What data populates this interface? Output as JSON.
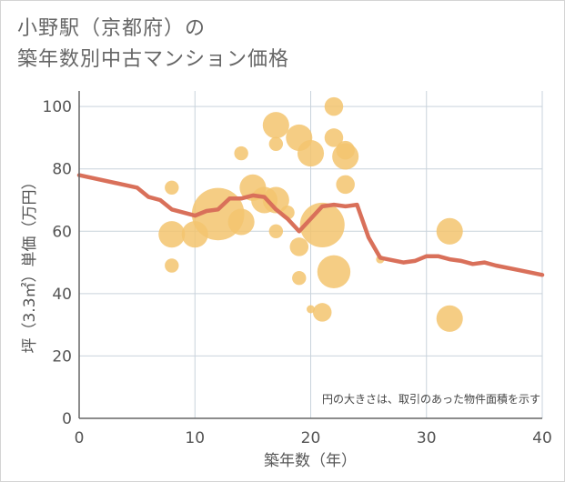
{
  "title": {
    "line1": "小野駅（京都府）の",
    "line2": "築年数別中古マンション価格"
  },
  "colors": {
    "bubble": "#f3c46e",
    "line": "#d9705a",
    "grid": "#c9d3dc",
    "axis": "#666666"
  },
  "chart_data": {
    "type": "scatter",
    "xlabel": "築年数（年）",
    "ylabel": "坪（3.3㎡）単価（万円）",
    "xlim": [
      0,
      40
    ],
    "ylim": [
      0,
      105
    ],
    "x_ticks": [
      "0",
      "10",
      "20",
      "30",
      "40"
    ],
    "y_ticks": [
      "0",
      "20",
      "40",
      "60",
      "80",
      "100"
    ],
    "grid": true,
    "annotation": "円の大きさは、取引のあった物件面積を示す",
    "bubbles": [
      {
        "x": 8,
        "y": 74,
        "size": 2
      },
      {
        "x": 8,
        "y": 59,
        "size": 5
      },
      {
        "x": 8,
        "y": 49,
        "size": 2
      },
      {
        "x": 10,
        "y": 59,
        "size": 5
      },
      {
        "x": 12,
        "y": 65.5,
        "size": 14
      },
      {
        "x": 14,
        "y": 63,
        "size": 5
      },
      {
        "x": 14,
        "y": 85,
        "size": 2
      },
      {
        "x": 15,
        "y": 74,
        "size": 5
      },
      {
        "x": 16,
        "y": 70,
        "size": 5
      },
      {
        "x": 17,
        "y": 94,
        "size": 5
      },
      {
        "x": 17,
        "y": 88,
        "size": 2
      },
      {
        "x": 17,
        "y": 70,
        "size": 5
      },
      {
        "x": 17,
        "y": 60,
        "size": 2
      },
      {
        "x": 18,
        "y": 66,
        "size": 2
      },
      {
        "x": 19,
        "y": 90,
        "size": 5
      },
      {
        "x": 19,
        "y": 55,
        "size": 3
      },
      {
        "x": 19,
        "y": 45,
        "size": 2
      },
      {
        "x": 20,
        "y": 85,
        "size": 5
      },
      {
        "x": 20,
        "y": 35,
        "size": 1
      },
      {
        "x": 21,
        "y": 62,
        "size": 11
      },
      {
        "x": 21,
        "y": 34,
        "size": 3
      },
      {
        "x": 22,
        "y": 100,
        "size": 3
      },
      {
        "x": 22,
        "y": 90,
        "size": 3
      },
      {
        "x": 22,
        "y": 47,
        "size": 7
      },
      {
        "x": 23,
        "y": 86,
        "size": 3
      },
      {
        "x": 23,
        "y": 84,
        "size": 5
      },
      {
        "x": 23,
        "y": 75,
        "size": 3
      },
      {
        "x": 26,
        "y": 51,
        "size": 1
      },
      {
        "x": 32,
        "y": 60,
        "size": 5
      },
      {
        "x": 32,
        "y": 32,
        "size": 5
      }
    ],
    "series": [
      {
        "x": [
          0,
          5,
          6,
          7,
          8,
          10,
          11,
          12,
          13,
          14,
          15,
          16,
          17,
          18,
          19,
          20,
          21,
          22,
          23,
          24,
          25,
          26,
          28,
          29,
          30,
          31,
          32,
          33,
          34,
          35,
          36,
          38,
          40
        ],
        "values": [
          78,
          74,
          71,
          70,
          67,
          65,
          66.5,
          67,
          70.5,
          70.5,
          71.5,
          71,
          67,
          64,
          60,
          64,
          68,
          68.5,
          68,
          68.5,
          58,
          51.5,
          50,
          50.5,
          52,
          52,
          51,
          50.5,
          49.5,
          50,
          49,
          47.5,
          46
        ]
      }
    ]
  }
}
